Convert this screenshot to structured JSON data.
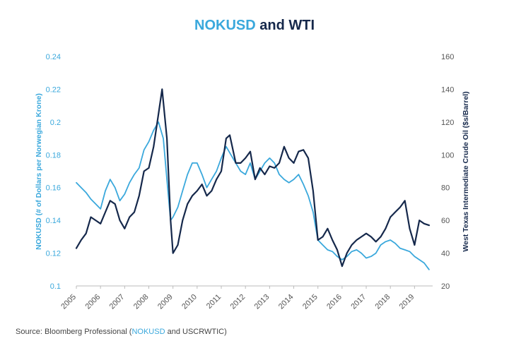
{
  "chart_data": {
    "type": "line",
    "title_parts": [
      "NOKUSD",
      " and ",
      "WTI"
    ],
    "ylabel_left": "NOKUSD (# of Dollars per Norwegian Krone)",
    "ylabel_right": "West Texas Intermediate Crude Oil ($s/Barrel)",
    "ylim_left": [
      0.1,
      0.24
    ],
    "ylim_right": [
      20,
      160
    ],
    "xlim": [
      2005.0,
      2019.75
    ],
    "yticks_left": [
      "0.24",
      "0.22",
      "0.2",
      "0.18",
      "0.16",
      "0.14",
      "0.12",
      "0.1"
    ],
    "yticks_left_values": [
      0.24,
      0.22,
      0.2,
      0.18,
      0.16,
      0.14,
      0.12,
      0.1
    ],
    "yticks_right": [
      "160",
      "140",
      "120",
      "100",
      "80",
      "60",
      "40",
      "20"
    ],
    "yticks_right_values": [
      160,
      140,
      120,
      100,
      80,
      60,
      40,
      20
    ],
    "xticks": [
      "2005",
      "2006",
      "2007",
      "2008",
      "2009",
      "2010",
      "2011",
      "2012",
      "2013",
      "2014",
      "2015",
      "2016",
      "2017",
      "2018",
      "2019"
    ],
    "xticks_values": [
      2005,
      2006,
      2007,
      2008,
      2009,
      2010,
      2011,
      2012,
      2013,
      2014,
      2015,
      2016,
      2017,
      2018,
      2019
    ],
    "grid": false,
    "colors": {
      "nokusd": "#3aa8dc",
      "wti": "#15284b",
      "title_dark": "#15284b",
      "text_gray": "#555555"
    },
    "series": [
      {
        "name": "NOKUSD",
        "axis": "left",
        "x": [
          2005.0,
          2005.2,
          2005.4,
          2005.6,
          2005.8,
          2006.0,
          2006.2,
          2006.4,
          2006.6,
          2006.8,
          2007.0,
          2007.2,
          2007.4,
          2007.6,
          2007.8,
          2008.0,
          2008.2,
          2008.4,
          2008.6,
          2008.75,
          2008.9,
          2009.0,
          2009.2,
          2009.4,
          2009.6,
          2009.8,
          2010.0,
          2010.2,
          2010.4,
          2010.6,
          2010.8,
          2011.0,
          2011.2,
          2011.4,
          2011.6,
          2011.8,
          2012.0,
          2012.2,
          2012.4,
          2012.6,
          2012.8,
          2013.0,
          2013.2,
          2013.4,
          2013.6,
          2013.8,
          2014.0,
          2014.2,
          2014.4,
          2014.6,
          2014.8,
          2015.0,
          2015.2,
          2015.4,
          2015.6,
          2015.8,
          2016.0,
          2016.2,
          2016.4,
          2016.6,
          2016.8,
          2017.0,
          2017.2,
          2017.4,
          2017.6,
          2017.8,
          2018.0,
          2018.2,
          2018.4,
          2018.6,
          2018.8,
          2019.0,
          2019.2,
          2019.4,
          2019.6
        ],
        "values": [
          0.163,
          0.16,
          0.157,
          0.153,
          0.15,
          0.147,
          0.158,
          0.165,
          0.16,
          0.152,
          0.156,
          0.163,
          0.168,
          0.172,
          0.183,
          0.188,
          0.195,
          0.2,
          0.19,
          0.165,
          0.14,
          0.142,
          0.148,
          0.158,
          0.168,
          0.175,
          0.175,
          0.168,
          0.16,
          0.165,
          0.17,
          0.178,
          0.185,
          0.18,
          0.175,
          0.17,
          0.168,
          0.175,
          0.165,
          0.17,
          0.175,
          0.178,
          0.175,
          0.168,
          0.165,
          0.163,
          0.165,
          0.168,
          0.162,
          0.155,
          0.145,
          0.128,
          0.125,
          0.122,
          0.121,
          0.118,
          0.116,
          0.118,
          0.121,
          0.122,
          0.12,
          0.117,
          0.118,
          0.12,
          0.125,
          0.127,
          0.128,
          0.126,
          0.123,
          0.122,
          0.121,
          0.118,
          0.116,
          0.114,
          0.11
        ]
      },
      {
        "name": "WTI",
        "axis": "right",
        "x": [
          2005.0,
          2005.2,
          2005.4,
          2005.6,
          2005.8,
          2006.0,
          2006.2,
          2006.4,
          2006.6,
          2006.8,
          2007.0,
          2007.2,
          2007.4,
          2007.6,
          2007.8,
          2008.0,
          2008.2,
          2008.4,
          2008.55,
          2008.75,
          2008.9,
          2009.0,
          2009.2,
          2009.4,
          2009.6,
          2009.8,
          2010.0,
          2010.2,
          2010.4,
          2010.6,
          2010.8,
          2011.0,
          2011.2,
          2011.35,
          2011.6,
          2011.8,
          2012.0,
          2012.2,
          2012.4,
          2012.6,
          2012.8,
          2013.0,
          2013.2,
          2013.4,
          2013.6,
          2013.8,
          2014.0,
          2014.2,
          2014.4,
          2014.6,
          2014.8,
          2015.0,
          2015.2,
          2015.4,
          2015.6,
          2015.8,
          2016.0,
          2016.2,
          2016.4,
          2016.6,
          2016.8,
          2017.0,
          2017.2,
          2017.4,
          2017.6,
          2017.8,
          2018.0,
          2018.2,
          2018.4,
          2018.6,
          2018.8,
          2019.0,
          2019.2,
          2019.4,
          2019.6
        ],
        "values": [
          43,
          48,
          52,
          62,
          60,
          58,
          65,
          72,
          70,
          60,
          55,
          62,
          65,
          75,
          90,
          92,
          105,
          125,
          140,
          110,
          60,
          40,
          45,
          60,
          70,
          75,
          78,
          82,
          75,
          78,
          85,
          90,
          110,
          112,
          95,
          95,
          98,
          102,
          85,
          92,
          88,
          93,
          92,
          95,
          105,
          98,
          95,
          102,
          103,
          98,
          78,
          48,
          50,
          55,
          48,
          42,
          32,
          40,
          45,
          48,
          50,
          52,
          50,
          47,
          50,
          55,
          62,
          65,
          68,
          72,
          55,
          45,
          60,
          58,
          57
        ]
      }
    ]
  },
  "source": {
    "prefix": "Source: Bloomberg Professional (",
    "highlight": "NOKUSD",
    "suffix": " and USCRWTIC)"
  }
}
